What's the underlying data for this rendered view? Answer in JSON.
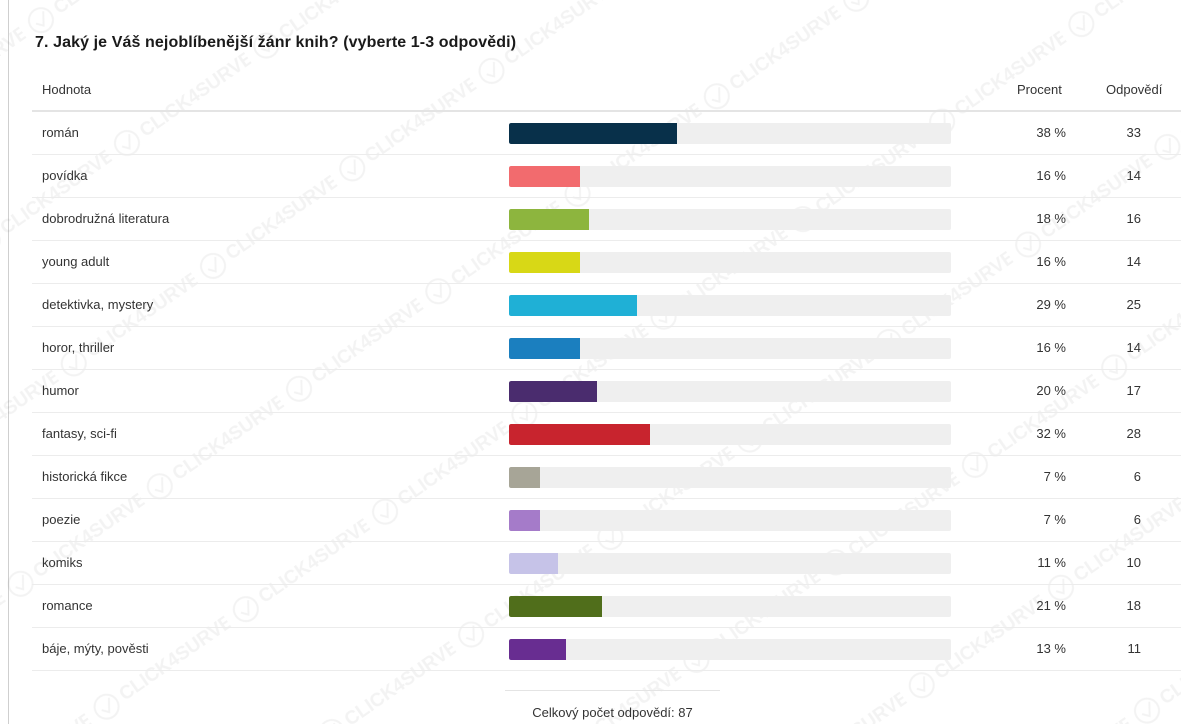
{
  "question": {
    "title": "7. Jaký je Váš nejoblíbenější žánr knih? (vyberte 1-3 odpovědi)"
  },
  "table": {
    "header_value": "Hodnota",
    "header_percent": "Procent",
    "header_count": "Odpovědí"
  },
  "footer": {
    "total_text": "Celkový počet odpovědí: 87"
  },
  "watermark": {
    "text": "CLICK4SURVEY"
  },
  "chart_data": {
    "type": "bar",
    "orientation": "horizontal",
    "title": "7. Jaký je Váš nejoblíbenější žánr knih? (vyberte 1-3 odpovědi)",
    "xlim": [
      0,
      100
    ],
    "grid": false,
    "categories": [
      "román",
      "povídka",
      "dobrodružná literatura",
      "young adult",
      "detektivka, mystery",
      "horor, thriller",
      "humor",
      "fantasy, sci-fi",
      "historická fikce",
      "poezie",
      "komiks",
      "romance",
      "báje, mýty, pověsti"
    ],
    "values": [
      38,
      16,
      18,
      16,
      29,
      16,
      20,
      32,
      7,
      7,
      11,
      21,
      13
    ],
    "percent_labels": [
      "38 %",
      "16 %",
      "18 %",
      "16 %",
      "29 %",
      "16 %",
      "20 %",
      "32 %",
      "7 %",
      "7 %",
      "11 %",
      "21 %",
      "13 %"
    ],
    "counts": [
      "33",
      "14",
      "16",
      "14",
      "25",
      "14",
      "17",
      "28",
      "6",
      "6",
      "10",
      "18",
      "11"
    ],
    "colors": [
      "#08304a",
      "#f26b6e",
      "#8db53e",
      "#d8d816",
      "#1fb0d6",
      "#1b7fbf",
      "#4a2c6e",
      "#c8242e",
      "#a7a597",
      "#a57bc9",
      "#c6c3e8",
      "#506e1b",
      "#682d91"
    ]
  }
}
